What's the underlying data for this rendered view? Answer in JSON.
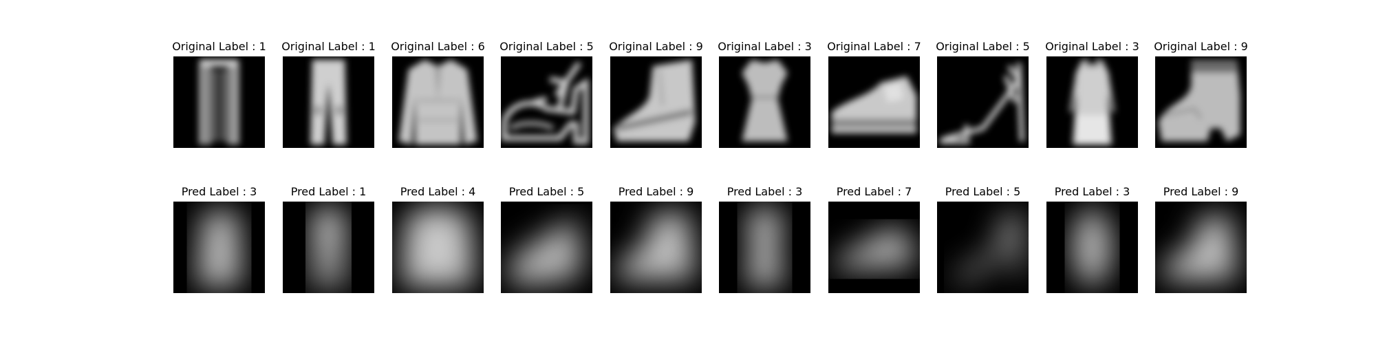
{
  "figure": {
    "rows": [
      {
        "name": "original",
        "panels": [
          {
            "title": "Original Label : 1",
            "icon": "trousers"
          },
          {
            "title": "Original Label : 1",
            "icon": "trousers"
          },
          {
            "title": "Original Label : 6",
            "icon": "shirt"
          },
          {
            "title": "Original Label : 5",
            "icon": "sandal"
          },
          {
            "title": "Original Label : 9",
            "icon": "ankle-boot"
          },
          {
            "title": "Original Label : 3",
            "icon": "dress"
          },
          {
            "title": "Original Label : 7",
            "icon": "sneaker"
          },
          {
            "title": "Original Label : 5",
            "icon": "sandal"
          },
          {
            "title": "Original Label : 3",
            "icon": "dress"
          },
          {
            "title": "Original Label : 9",
            "icon": "ankle-boot"
          }
        ]
      },
      {
        "name": "pred",
        "panels": [
          {
            "title": "Pred Label : 3",
            "icon": "dress-blurred"
          },
          {
            "title": "Pred Label : 1",
            "icon": "trousers-blurred"
          },
          {
            "title": "Pred Label : 4",
            "icon": "coat-blurred"
          },
          {
            "title": "Pred Label : 5",
            "icon": "sandal-blurred"
          },
          {
            "title": "Pred Label : 9",
            "icon": "ankle-boot-blurred"
          },
          {
            "title": "Pred Label : 3",
            "icon": "dress-blurred"
          },
          {
            "title": "Pred Label : 7",
            "icon": "sneaker-blurred"
          },
          {
            "title": "Pred Label : 5",
            "icon": "sandal-blurred"
          },
          {
            "title": "Pred Label : 3",
            "icon": "dress-blurred"
          },
          {
            "title": "Pred Label : 9",
            "icon": "ankle-boot-blurred"
          }
        ]
      }
    ]
  }
}
